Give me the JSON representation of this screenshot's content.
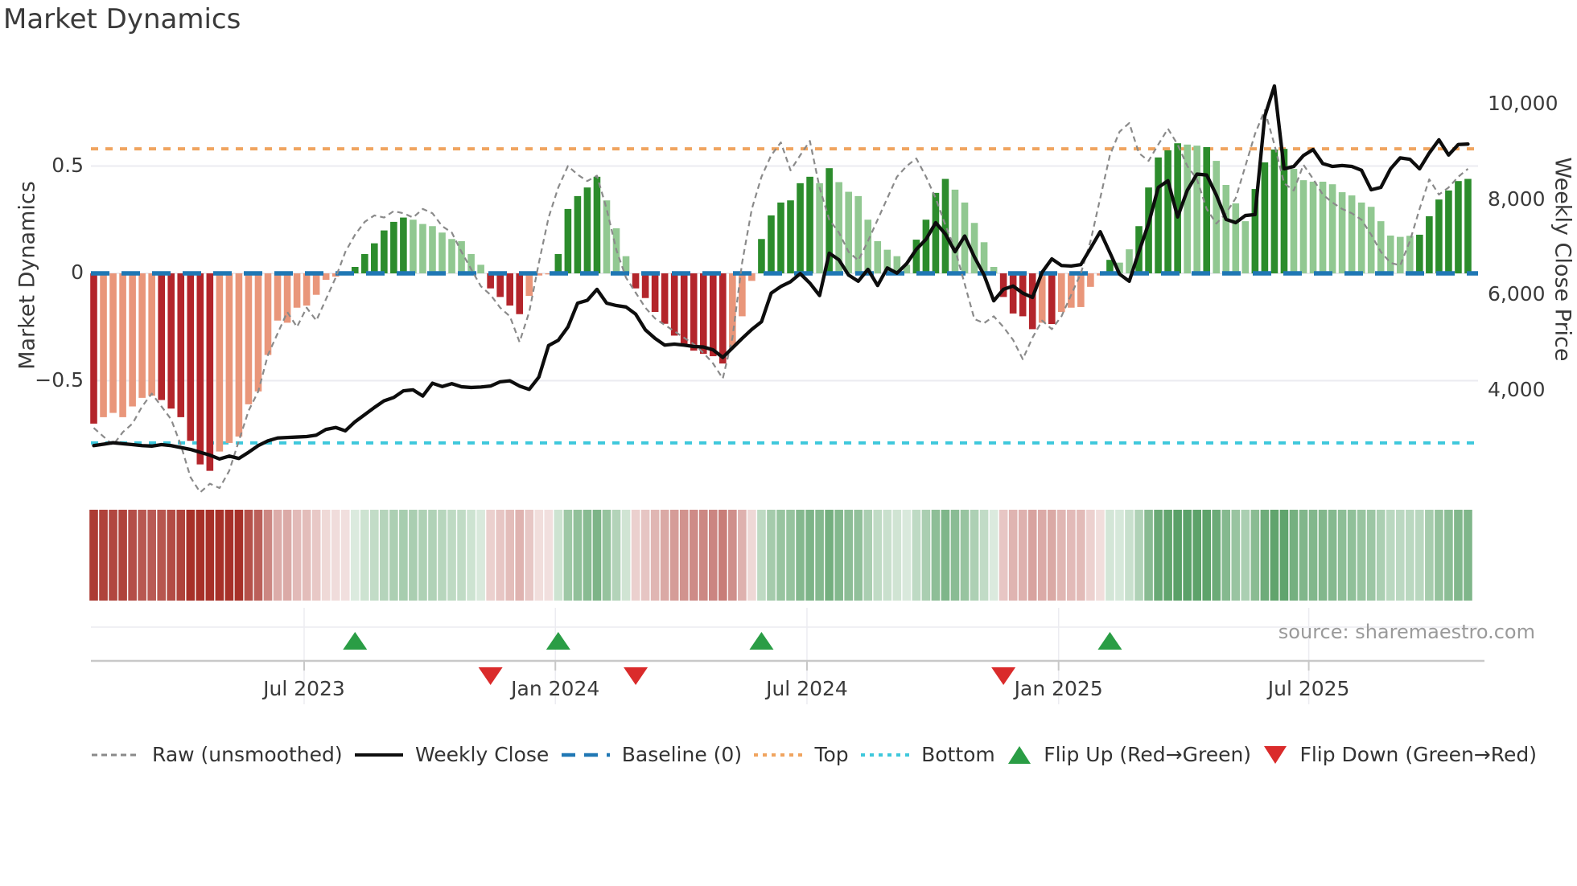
{
  "title": "Market Dynamics",
  "source": "source: sharemaestro.com",
  "axes": {
    "left_label": "Market Dynamics",
    "right_label": "Weekly Close Price",
    "left_ticks": [
      {
        "label": "0.5",
        "value": 0.5
      },
      {
        "label": "0",
        "value": 0.0
      },
      {
        "label": "−0.5",
        "value": -0.5
      }
    ],
    "right_ticks": [
      {
        "label": "10,000",
        "value": 10000
      },
      {
        "label": "8,000",
        "value": 8000
      },
      {
        "label": "6,000",
        "value": 6000
      },
      {
        "label": "4,000",
        "value": 4000
      }
    ],
    "x_ticks": [
      {
        "label": "Jul 2023",
        "week": 21.74
      },
      {
        "label": "Jan 2024",
        "week": 47.7
      },
      {
        "label": "Jul 2024",
        "week": 73.7
      },
      {
        "label": "Jan 2025",
        "week": 99.7
      },
      {
        "label": "Jul 2025",
        "week": 125.55
      }
    ]
  },
  "legend": {
    "raw": "Raw (unsmoothed)",
    "weekly_close": "Weekly Close",
    "baseline": "Baseline (0)",
    "top": "Top",
    "bottom": "Bottom",
    "flip_up": "Flip Up (Red→Green)",
    "flip_down": "Flip Down (Green→Red)"
  },
  "colors": {
    "dark_red": "#b3252b",
    "light_red": "#e9967a",
    "dark_green": "#2c8c2c",
    "light_green": "#91c891",
    "baseline_blue": "#1f77b4",
    "top_orange": "#f0a45f",
    "bottom_cyan": "#3ec8dc",
    "raw_gray": "#8a8a8a",
    "close_black": "#0d0d0d",
    "flip_up_green": "#2a9d45",
    "flip_down_red": "#da2b2b"
  },
  "chart_data": {
    "type": "combo-oscillator-price",
    "frequency": "weekly",
    "start_date": "2023-01-30",
    "baseline": 0,
    "top_level": 0.58,
    "bottom_level": -0.79,
    "y_left_range": [
      -1.0,
      0.9
    ],
    "y_right_tick_values": [
      10000,
      8000,
      6000,
      4000
    ],
    "oscillator_values": [
      -0.7,
      -0.67,
      -0.65,
      -0.67,
      -0.62,
      -0.58,
      -0.57,
      -0.59,
      -0.63,
      -0.67,
      -0.78,
      -0.89,
      -0.92,
      -0.83,
      -0.79,
      -0.76,
      -0.61,
      -0.55,
      -0.38,
      -0.22,
      -0.23,
      -0.16,
      -0.15,
      -0.1,
      -0.03,
      -0.015,
      -0.005,
      0.03,
      0.09,
      0.14,
      0.2,
      0.24,
      0.26,
      0.25,
      0.23,
      0.22,
      0.19,
      0.16,
      0.15,
      0.09,
      0.04,
      -0.07,
      -0.11,
      -0.15,
      -0.19,
      -0.105,
      -0.01,
      -0.005,
      0.09,
      0.3,
      0.36,
      0.4,
      0.45,
      0.34,
      0.21,
      0.08,
      -0.07,
      -0.115,
      -0.18,
      -0.235,
      -0.29,
      -0.33,
      -0.36,
      -0.375,
      -0.386,
      -0.42,
      -0.345,
      -0.2,
      -0.035,
      0.16,
      0.27,
      0.33,
      0.34,
      0.42,
      0.45,
      0.42,
      0.49,
      0.425,
      0.38,
      0.36,
      0.25,
      0.15,
      0.11,
      0.08,
      0.04,
      0.157,
      0.25,
      0.375,
      0.44,
      0.39,
      0.33,
      0.235,
      0.145,
      0.03,
      -0.11,
      -0.187,
      -0.2,
      -0.26,
      -0.23,
      -0.236,
      -0.18,
      -0.16,
      -0.157,
      -0.063,
      -0.01,
      0.063,
      0.05,
      0.112,
      0.22,
      0.4,
      0.54,
      0.573,
      0.606,
      0.6,
      0.595,
      0.588,
      0.524,
      0.412,
      0.326,
      0.243,
      0.393,
      0.517,
      0.577,
      0.58,
      0.487,
      0.434,
      0.427,
      0.427,
      0.415,
      0.378,
      0.363,
      0.33,
      0.31,
      0.243,
      0.176,
      0.17,
      0.175,
      0.18,
      0.266,
      0.344,
      0.386,
      0.43,
      0.44
    ],
    "oscillator_shades": "DLLLLLLDDDDDDLLLLLLLLLLLLLLDDDDDDLLLLLLLLDDDDLLLDDDDDLLLDDDDDDDDDDLLLDDDDDDLDLLLLLLLLDDDDLLLLLDDDDLDLLLLLDLLDDDDDLLDLLLLDDDDLLLLLLLLLLLLLDDDDDD",
    "raw_values": [
      -0.72,
      -0.76,
      -0.8,
      -0.74,
      -0.7,
      -0.62,
      -0.56,
      -0.62,
      -0.68,
      -0.8,
      -0.95,
      -1.02,
      -0.98,
      -1.0,
      -0.92,
      -0.78,
      -0.64,
      -0.55,
      -0.38,
      -0.28,
      -0.18,
      -0.25,
      -0.16,
      -0.22,
      -0.12,
      -0.02,
      0.1,
      0.18,
      0.24,
      0.27,
      0.26,
      0.29,
      0.28,
      0.26,
      0.3,
      0.28,
      0.22,
      0.19,
      0.1,
      0.02,
      -0.06,
      -0.1,
      -0.16,
      -0.2,
      -0.32,
      -0.18,
      0.05,
      0.26,
      0.4,
      0.5,
      0.46,
      0.43,
      0.455,
      0.3,
      0.11,
      -0.02,
      -0.09,
      -0.16,
      -0.21,
      -0.24,
      -0.27,
      -0.3,
      -0.33,
      -0.37,
      -0.42,
      -0.49,
      -0.3,
      0.05,
      0.3,
      0.45,
      0.55,
      0.61,
      0.48,
      0.55,
      0.617,
      0.4,
      0.25,
      0.19,
      0.1,
      0.06,
      0.15,
      0.25,
      0.35,
      0.45,
      0.5,
      0.535,
      0.45,
      0.35,
      0.225,
      0.112,
      -0.05,
      -0.213,
      -0.232,
      -0.2,
      -0.25,
      -0.31,
      -0.4,
      -0.3,
      -0.22,
      -0.26,
      -0.2,
      -0.1,
      0.0,
      0.15,
      0.35,
      0.55,
      0.66,
      0.7,
      0.56,
      0.524,
      0.6,
      0.674,
      0.6,
      0.5,
      0.438,
      0.3,
      0.232,
      0.28,
      0.35,
      0.5,
      0.65,
      0.76,
      0.6,
      0.42,
      0.386,
      0.506,
      0.44,
      0.367,
      0.33,
      0.3,
      0.28,
      0.25,
      0.18,
      0.1,
      0.049,
      0.037,
      0.15,
      0.3,
      0.438,
      0.367,
      0.4,
      0.45,
      0.487
    ],
    "weekly_close_values": [
      2840,
      2870,
      2900,
      2880,
      2860,
      2840,
      2830,
      2860,
      2840,
      2800,
      2760,
      2700,
      2640,
      2560,
      2620,
      2570,
      2700,
      2840,
      2940,
      3000,
      3010,
      3020,
      3030,
      3060,
      3180,
      3220,
      3150,
      3340,
      3490,
      3640,
      3780,
      3850,
      3990,
      4010,
      3880,
      4150,
      4080,
      4140,
      4075,
      4060,
      4070,
      4090,
      4180,
      4200,
      4090,
      4020,
      4280,
      4940,
      5050,
      5330,
      5830,
      5890,
      6120,
      5830,
      5780,
      5750,
      5600,
      5270,
      5090,
      4950,
      4970,
      4950,
      4920,
      4910,
      4850,
      4690,
      4890,
      5090,
      5280,
      5440,
      6040,
      6180,
      6280,
      6450,
      6250,
      5990,
      6880,
      6740,
      6420,
      6290,
      6540,
      6200,
      6570,
      6460,
      6660,
      6960,
      7170,
      7520,
      7280,
      6910,
      7240,
      6800,
      6420,
      5880,
      6120,
      6190,
      6040,
      5950,
      6480,
      6760,
      6620,
      6610,
      6640,
      6980,
      7330,
      6890,
      6440,
      6290,
      6910,
      7500,
      8260,
      8400,
      7640,
      8200,
      8540,
      8520,
      8100,
      7590,
      7520,
      7670,
      7690,
      9750,
      10390,
      8650,
      8700,
      8930,
      9055,
      8760,
      8700,
      8720,
      8700,
      8620,
      8210,
      8260,
      8650,
      8880,
      8850,
      8650,
      8980,
      9260,
      8940,
      9160,
      9170
    ],
    "flip_up_indices": [
      27,
      48,
      69,
      105
    ],
    "flip_down_indices": [
      41,
      56,
      94
    ]
  }
}
